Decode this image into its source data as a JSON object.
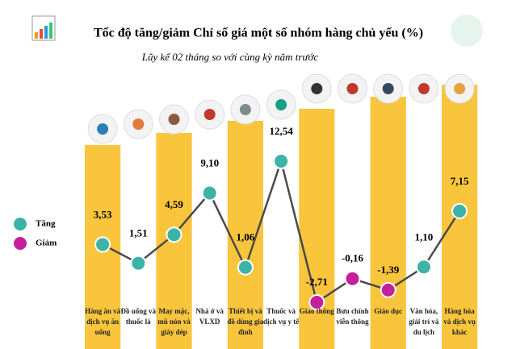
{
  "chart_data": {
    "type": "line",
    "title": "Tốc độ tăng/giảm Chỉ số giá một số nhóm hàng chủ yếu (%)",
    "subtitle": "Lũy kế 02 tháng so với cùng kỳ năm trước",
    "categories": [
      "Hàng ăn và dịch vụ ăn uống",
      "Đồ uống và thuốc lá",
      "May mặc, mũ nón và giày dép",
      "Nhà ở và VLXD",
      "Thiết bị và đồ dùng gia đình",
      "Thuốc và dịch vụ y tế",
      "Giao thông",
      "Bưu chính viễn thông",
      "Giáo dục",
      "Văn hóa, giải trí và du lịch",
      "Hàng hóa và dịch vụ khác"
    ],
    "values": [
      3.53,
      1.51,
      4.59,
      9.1,
      1.06,
      12.54,
      -2.71,
      -0.16,
      -1.39,
      1.1,
      7.15
    ],
    "value_labels": [
      "3,53",
      "1,51",
      "4,59",
      "9,10",
      "1,06",
      "12,54",
      "-2,71",
      "-0,16",
      "-1,39",
      "1,10",
      "7,15"
    ],
    "legend": [
      {
        "name": "Tăng",
        "color": "#3bb3a6"
      },
      {
        "name": "Giảm",
        "color": "#c51f9c"
      }
    ],
    "line_color": "#4a4a4a",
    "column_color": "#f9c53d"
  }
}
